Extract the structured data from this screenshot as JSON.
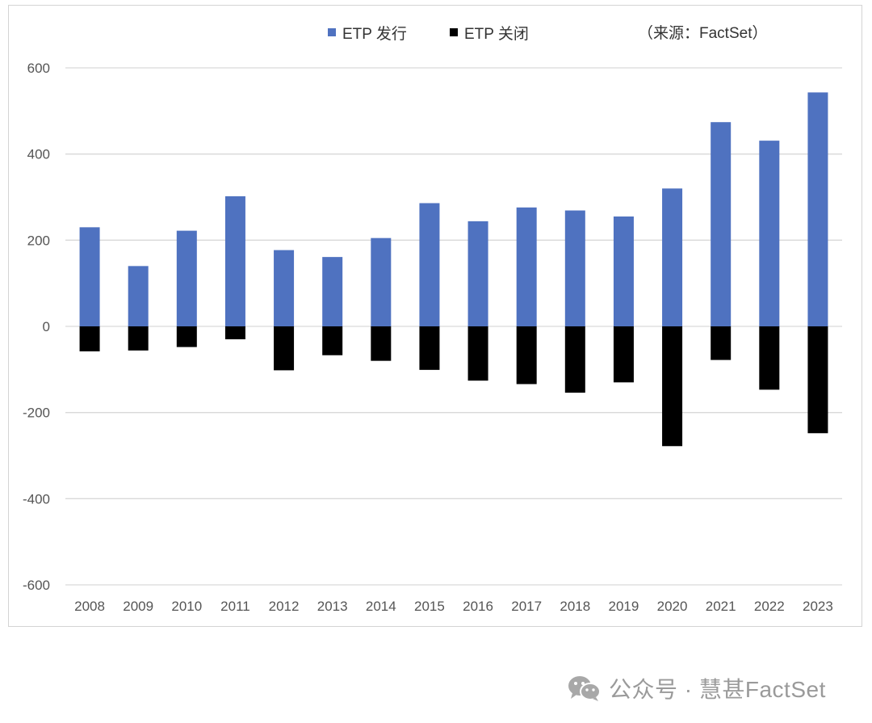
{
  "chart_data": {
    "type": "bar",
    "title": "",
    "xlabel": "",
    "ylabel": "",
    "ylim": [
      -600,
      600
    ],
    "yticks": [
      600,
      400,
      200,
      0,
      -200,
      -400,
      -600
    ],
    "ytick_labels": [
      "600",
      "400",
      "200",
      "0",
      "-200",
      "-400",
      "-600"
    ],
    "grid": true,
    "legend_position": "top-center",
    "categories": [
      "2008",
      "2009",
      "2010",
      "2011",
      "2012",
      "2013",
      "2014",
      "2015",
      "2016",
      "2017",
      "2018",
      "2019",
      "2020",
      "2021",
      "2022",
      "2023"
    ],
    "series": [
      {
        "name": "ETP 发行",
        "color": "#4f72c0",
        "values": [
          230,
          140,
          222,
          302,
          177,
          161,
          205,
          286,
          244,
          276,
          269,
          255,
          320,
          474,
          431,
          543
        ]
      },
      {
        "name": "ETP 关闭",
        "color": "#000000",
        "values": [
          -58,
          -56,
          -48,
          -30,
          -102,
          -67,
          -80,
          -101,
          -126,
          -134,
          -154,
          -130,
          -278,
          -78,
          -147,
          -248
        ]
      }
    ]
  },
  "legend": {
    "issue_label": "ETP 发行",
    "close_label": "ETP 关闭",
    "issue_color": "#4f72c0",
    "close_color": "#000000"
  },
  "source_note": "（来源：FactSet）",
  "watermark": {
    "text": "公众号 · 慧甚FactSet",
    "icon": "wechat-icon"
  }
}
